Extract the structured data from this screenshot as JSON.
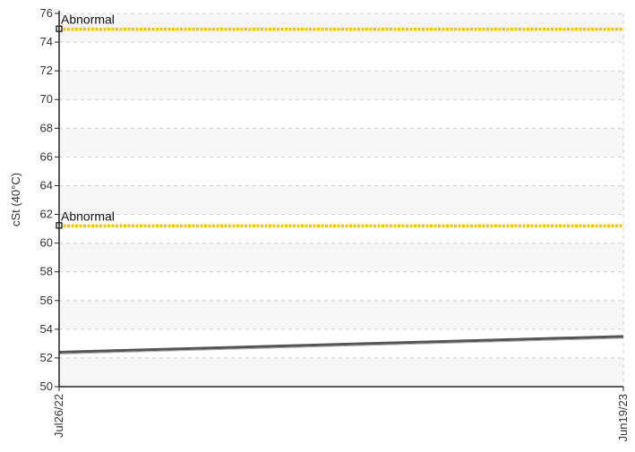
{
  "chart_data": {
    "type": "line",
    "ylabel": "cSt (40°C)",
    "xlabel": "",
    "ylim": [
      50,
      76
    ],
    "yticks": [
      50,
      52,
      54,
      56,
      58,
      60,
      62,
      64,
      66,
      68,
      70,
      72,
      74,
      76
    ],
    "x_tick_labels": [
      "Jul26/22",
      "Jun19/23"
    ],
    "grid": true,
    "series": [
      {
        "x": [
          "Jul26/22",
          "Jun19/23"
        ],
        "values": [
          52.4,
          53.5
        ],
        "color": "#555555"
      }
    ],
    "limits": [
      {
        "label": "Abnormal",
        "value": 74.9,
        "color": "#f5c400"
      },
      {
        "label": "Abnormal",
        "value": 61.2,
        "color": "#f5c400"
      }
    ]
  }
}
